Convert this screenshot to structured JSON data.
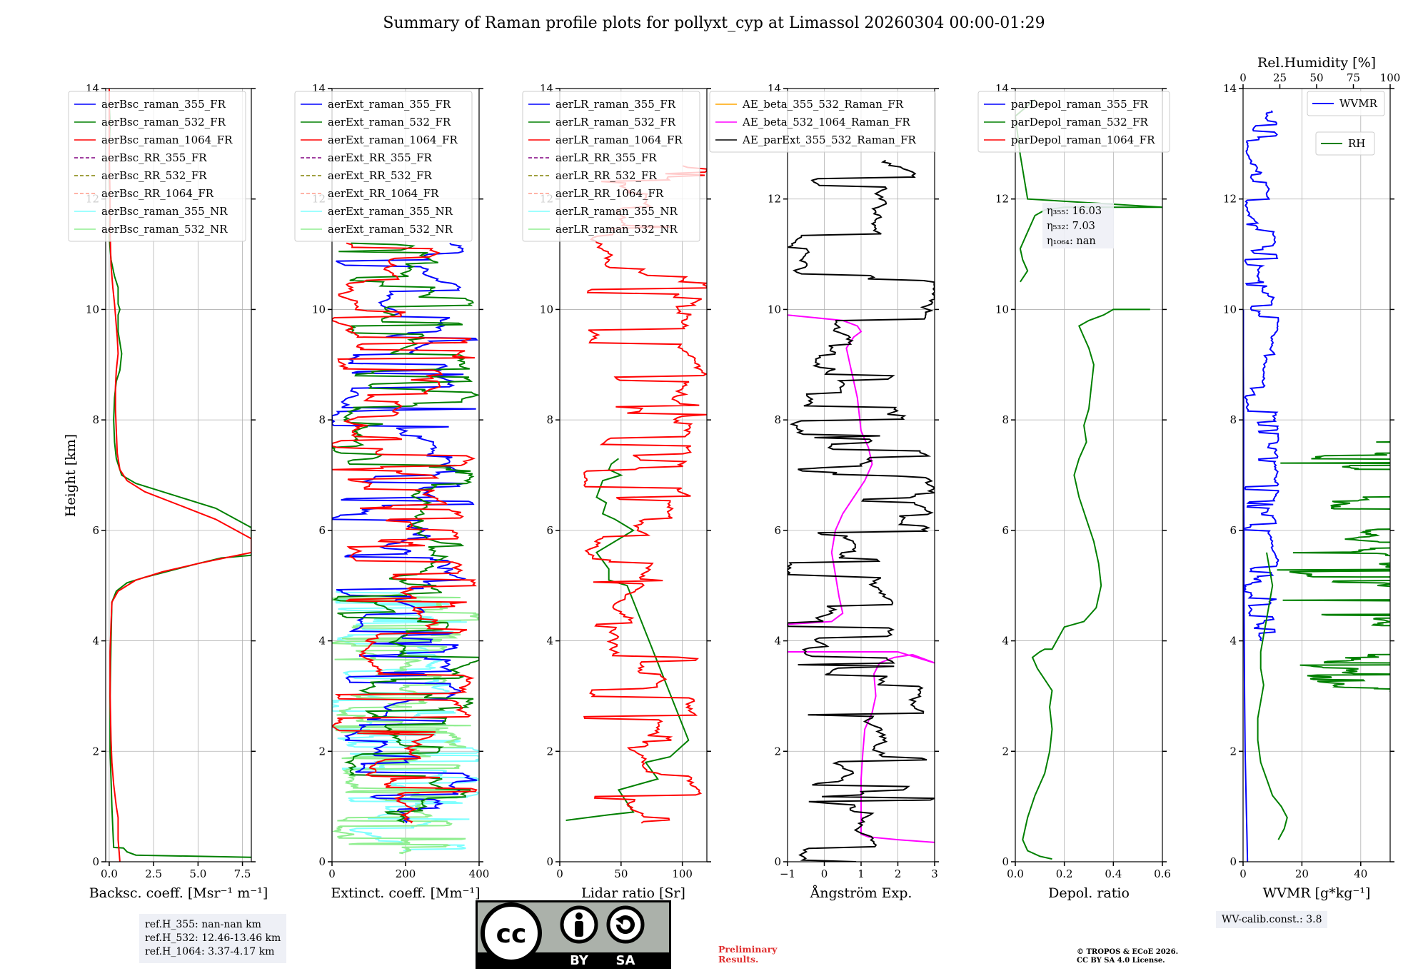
{
  "title": "Summary of Raman profile plots for pollyxt_cyp at Limassol 20260304 00:00-01:29",
  "ylabel": "Height [km]",
  "ref_heights": [
    "ref.H_355: nan-nan km",
    "ref.H_532: 12.46-13.46 km",
    "ref.H_1064: 3.37-4.17 km"
  ],
  "wv_calib": "WV-calib.const.: 3.8",
  "preliminary": [
    "Preliminary",
    "Results."
  ],
  "copyright": [
    "© TROPOS & ECoE 2026.",
    "CC BY SA 4.0 License."
  ],
  "license_badge": {
    "by": "BY",
    "sa": "SA"
  },
  "chart_data": [
    {
      "type": "line",
      "id": "bsc",
      "xlabel": "Backsc. coeff. [Msr⁻¹ m⁻¹]",
      "xlim": [
        -0.2,
        8
      ],
      "xticks": [
        0,
        2.5,
        5,
        7.5
      ],
      "xticklabels": [
        "0.0",
        "2.5",
        "5.0",
        "7.5"
      ],
      "ylim": [
        0,
        14
      ],
      "yticks": [
        0,
        2,
        4,
        6,
        8,
        10,
        12,
        14
      ],
      "legend": [
        {
          "label": "aerBsc_raman_355_FR",
          "color": "#0000ff",
          "dash": false
        },
        {
          "label": "aerBsc_raman_532_FR",
          "color": "#008000",
          "dash": false
        },
        {
          "label": "aerBsc_raman_1064_FR",
          "color": "#ff0000",
          "dash": false
        },
        {
          "label": "aerBsc_RR_355_FR",
          "color": "#800080",
          "dash": true
        },
        {
          "label": "aerBsc_RR_532_FR",
          "color": "#808000",
          "dash": true
        },
        {
          "label": "aerBsc_RR_1064_FR",
          "color": "#ff9a8a",
          "dash": true
        },
        {
          "label": "aerBsc_raman_355_NR",
          "color": "#7fffff",
          "dash": false
        },
        {
          "label": "aerBsc_raman_532_NR",
          "color": "#90ee90",
          "dash": false
        }
      ],
      "series": [
        {
          "name": "aerBsc_raman_532_FR",
          "color": "#008000",
          "x": [
            8,
            1.5,
            1.0,
            0.8,
            0.25,
            0.2,
            0.15,
            0.1,
            0.05,
            0.05,
            0.1,
            0.15,
            0.4,
            1.0,
            2.0,
            3.2,
            5.0,
            6.3,
            8.0,
            8.0,
            6.0,
            3.5,
            1.5,
            0.7,
            0.4,
            0.3,
            0.25,
            0.3,
            0.4,
            0.6,
            0.7,
            0.6,
            0.5,
            0.5,
            0.5,
            0.6,
            0.5,
            0.5,
            0.3,
            0.1,
            0.0,
            0.05,
            0.0,
            0.0,
            0.05,
            0.0,
            0.0,
            0.0
          ],
          "y": [
            0.08,
            0.12,
            0.18,
            0.25,
            0.26,
            0.6,
            1.0,
            1.5,
            2.0,
            3.0,
            4.0,
            4.7,
            4.9,
            5.05,
            5.15,
            5.25,
            5.4,
            5.5,
            5.55,
            6.05,
            6.4,
            6.65,
            6.85,
            7.0,
            7.3,
            7.6,
            8.0,
            8.4,
            8.7,
            8.9,
            9.2,
            9.4,
            9.6,
            9.8,
            9.9,
            10.0,
            10.1,
            10.4,
            10.6,
            10.9,
            11.3,
            11.8,
            12.4,
            12.9,
            13.4,
            13.7,
            13.9,
            14.0
          ]
        },
        {
          "name": "aerBsc_raman_1064_FR",
          "color": "#ff0000",
          "x": [
            0.6,
            0.55,
            0.5,
            0.5,
            0.4,
            0.25,
            0.15,
            0.1,
            0.05,
            0.05,
            0.1,
            0.15,
            0.5,
            1.5,
            3.0,
            5.0,
            6.5,
            8.0,
            8.0,
            6.0,
            4.0,
            2.0,
            1.0,
            0.6,
            0.45,
            0.4,
            0.35,
            0.35,
            0.4,
            0.5,
            0.45,
            0.4,
            0.35,
            0.3,
            0.2,
            0.1,
            0.05,
            0.05,
            0.0,
            0.0,
            0.0
          ],
          "y": [
            0.0,
            0.2,
            0.4,
            0.8,
            1.0,
            1.4,
            1.8,
            2.2,
            3.0,
            3.8,
            4.3,
            4.7,
            4.9,
            5.1,
            5.25,
            5.4,
            5.5,
            5.6,
            5.85,
            6.2,
            6.45,
            6.7,
            6.9,
            7.1,
            7.4,
            7.8,
            8.2,
            8.6,
            8.9,
            9.2,
            9.5,
            9.7,
            9.9,
            10.1,
            10.4,
            10.8,
            11.4,
            12.0,
            12.8,
            13.6,
            14.0
          ]
        }
      ]
    },
    {
      "type": "line",
      "id": "ext",
      "xlabel": "Extinct. coeff. [Mm⁻¹]",
      "xlim": [
        0,
        400
      ],
      "xticks": [
        0,
        200,
        400
      ],
      "xticklabels": [
        "0",
        "200",
        "400"
      ],
      "ylim": [
        0,
        14
      ],
      "yticks": [
        0,
        2,
        4,
        6,
        8,
        10,
        12,
        14
      ],
      "legend": [
        {
          "label": "aerExt_raman_355_FR",
          "color": "#0000ff",
          "dash": false
        },
        {
          "label": "aerExt_raman_532_FR",
          "color": "#008000",
          "dash": false
        },
        {
          "label": "aerExt_raman_1064_FR",
          "color": "#ff0000",
          "dash": false
        },
        {
          "label": "aerExt_RR_355_FR",
          "color": "#800080",
          "dash": true
        },
        {
          "label": "aerExt_RR_532_FR",
          "color": "#808000",
          "dash": true
        },
        {
          "label": "aerExt_RR_1064_FR",
          "color": "#ff9a8a",
          "dash": true
        },
        {
          "label": "aerExt_raman_355_NR",
          "color": "#7fffff",
          "dash": false
        },
        {
          "label": "aerExt_raman_532_NR",
          "color": "#90ee90",
          "dash": false
        }
      ],
      "series": [
        {
          "name": "aerExt_raman_355_NR",
          "color": "#7fffff",
          "spiky": true,
          "ymin": 0.2,
          "ymax": 4.9,
          "xmin": 0,
          "xmax": 400
        },
        {
          "name": "aerExt_raman_532_NR",
          "color": "#90ee90",
          "spiky": true,
          "ymin": 0.15,
          "ymax": 4.85,
          "xmin": 0,
          "xmax": 400
        },
        {
          "name": "aerExt_raman_355_FR",
          "color": "#0000ff",
          "spiky": true,
          "ymin": 0.7,
          "ymax": 11.2,
          "xmin": 0,
          "xmax": 400
        },
        {
          "name": "aerExt_raman_532_FR",
          "color": "#008000",
          "spiky": true,
          "ymin": 0.7,
          "ymax": 11.2,
          "xmin": 0,
          "xmax": 400
        },
        {
          "name": "aerExt_raman_1064_FR",
          "color": "#ff0000",
          "spiky": true,
          "ymin": 0.7,
          "ymax": 11.2,
          "xmin": 0,
          "xmax": 400
        }
      ]
    },
    {
      "type": "line",
      "id": "lr",
      "xlabel": "Lidar ratio [Sr]",
      "xlim": [
        0,
        120
      ],
      "xticks": [
        0,
        50,
        100
      ],
      "xticklabels": [
        "0",
        "50",
        "100"
      ],
      "ylim": [
        0,
        14
      ],
      "yticks": [
        0,
        2,
        4,
        6,
        8,
        10,
        12,
        14
      ],
      "legend": [
        {
          "label": "aerLR_raman_355_FR",
          "color": "#0000ff",
          "dash": false
        },
        {
          "label": "aerLR_raman_532_FR",
          "color": "#008000",
          "dash": false
        },
        {
          "label": "aerLR_raman_1064_FR",
          "color": "#ff0000",
          "dash": false
        },
        {
          "label": "aerLR_RR_355_FR",
          "color": "#800080",
          "dash": true
        },
        {
          "label": "aerLR_RR_532_FR",
          "color": "#808000",
          "dash": true
        },
        {
          "label": "aerLR_RR_1064_FR",
          "color": "#ff9a8a",
          "dash": true
        },
        {
          "label": "aerLR_raman_355_NR",
          "color": "#7fffff",
          "dash": false
        },
        {
          "label": "aerLR_raman_532_NR",
          "color": "#90ee90",
          "dash": false
        }
      ],
      "series": [
        {
          "name": "aerLR_raman_532_FR",
          "color": "#008000",
          "x": [
            5,
            40,
            60,
            48,
            80,
            70,
            90,
            100,
            105,
            55,
            40,
            40,
            30,
            60,
            45,
            35,
            38,
            30,
            35,
            50,
            40,
            42,
            48
          ],
          "y": [
            0.75,
            0.85,
            0.9,
            1.3,
            1.5,
            1.8,
            1.9,
            2.1,
            2.2,
            5.0,
            5.1,
            5.3,
            5.6,
            6.0,
            6.2,
            6.3,
            6.5,
            6.6,
            6.9,
            7.0,
            7.1,
            7.2,
            7.3
          ]
        },
        {
          "name": "aerLR_raman_1064_FR",
          "color": "#ff0000",
          "spiky": true,
          "ymin": 0.7,
          "ymax": 12.6,
          "xmin": 20,
          "xmax": 120
        }
      ]
    },
    {
      "type": "line",
      "id": "ae",
      "xlabel": "Ångström Exp.",
      "xlim": [
        -1,
        3
      ],
      "xticks": [
        -1,
        0,
        1,
        2,
        3
      ],
      "xticklabels": [
        "−1",
        "0",
        "1",
        "2",
        "3"
      ],
      "ylim": [
        0,
        14
      ],
      "yticks": [
        0,
        2,
        4,
        6,
        8,
        10,
        12,
        14
      ],
      "legend": [
        {
          "label": "AE_beta_355_532_Raman_FR",
          "color": "#ffa500",
          "dash": false
        },
        {
          "label": "AE_beta_532_1064_Raman_FR",
          "color": "#ff00ff",
          "dash": false
        },
        {
          "label": "AE_parExt_355_532_Raman_FR",
          "color": "#000000",
          "dash": false
        }
      ],
      "series": [
        {
          "name": "AE_beta_532_1064_Raman_FR",
          "color": "#ff00ff",
          "x": [
            3,
            2.0,
            1.2,
            1.0,
            1.0,
            1.05,
            1.1,
            1.3,
            1.4,
            1.35,
            1.5,
            1.9,
            2.4,
            3.0,
            2.0,
            1.0,
            0.3,
            -1
          ],
          "y": [
            0.35,
            0.4,
            0.45,
            0.5,
            1.5,
            2.0,
            2.4,
            2.7,
            3.0,
            3.4,
            3.6,
            3.7,
            3.75,
            3.6,
            3.8,
            3.8,
            3.8,
            3.8
          ]
        },
        {
          "name": "AE_beta_532_1064_Raman_FR_upper",
          "color": "#ff00ff",
          "x": [
            -1,
            0.2,
            0.5,
            0.4,
            0.3,
            0.2,
            0.3,
            0.5,
            0.8,
            1.1,
            1.3,
            1.2,
            1.0,
            0.95,
            0.9,
            0.8,
            0.7,
            0.6,
            0.8,
            1.0,
            0.9,
            0.5,
            -1
          ],
          "y": [
            4.3,
            4.35,
            4.5,
            4.8,
            5.2,
            5.6,
            6.0,
            6.3,
            6.6,
            6.9,
            7.2,
            7.5,
            7.8,
            8.1,
            8.4,
            8.7,
            9.0,
            9.3,
            9.5,
            9.6,
            9.7,
            9.8,
            9.9
          ]
        },
        {
          "name": "AE_parExt_355_532_Raman_FR",
          "color": "#000000",
          "spiky": true,
          "ymin": 0.0,
          "ymax": 12.7,
          "xmin": -1,
          "xmax": 3
        }
      ]
    },
    {
      "type": "line",
      "id": "depol",
      "xlabel": "Depol. ratio",
      "xlim": [
        0,
        0.6
      ],
      "xticks": [
        0,
        0.2,
        0.4,
        0.6
      ],
      "xticklabels": [
        "0.0",
        "0.2",
        "0.4",
        "0.6"
      ],
      "ylim": [
        0,
        14
      ],
      "yticks": [
        0,
        2,
        4,
        6,
        8,
        10,
        12,
        14
      ],
      "legend": [
        {
          "label": "parDepol_raman_355_FR",
          "color": "#0000ff",
          "dash": false
        },
        {
          "label": "parDepol_raman_532_FR",
          "color": "#008000",
          "dash": false
        },
        {
          "label": "parDepol_raman_1064_FR",
          "color": "#ff0000",
          "dash": false
        }
      ],
      "annotations": [
        "η₃₅₅: 16.03",
        "η₅₃₂: 7.03",
        "η₁₀₆₄: nan"
      ],
      "series": [
        {
          "name": "parDepol_raman_532_FR",
          "color": "#008000",
          "x": [
            0.15,
            0.1,
            0.05,
            0.03,
            0.05,
            0.08,
            0.12,
            0.14,
            0.15,
            0.14,
            0.15,
            0.12,
            0.09,
            0.08,
            0.07,
            0.1,
            0.12,
            0.15,
            0.2,
            0.28,
            0.33,
            0.35,
            0.34,
            0.32,
            0.29,
            0.26,
            0.24,
            0.26,
            0.29,
            0.28,
            0.3,
            0.31,
            0.32,
            0.3,
            0.28,
            0.26,
            0.3,
            0.36,
            0.4,
            0.55
          ],
          "y": [
            0.05,
            0.1,
            0.2,
            0.4,
            0.8,
            1.2,
            1.6,
            2.0,
            2.4,
            2.8,
            3.1,
            3.3,
            3.5,
            3.6,
            3.7,
            3.8,
            3.85,
            3.85,
            4.25,
            4.35,
            4.6,
            5.0,
            5.4,
            5.8,
            6.2,
            6.6,
            7.0,
            7.3,
            7.6,
            7.9,
            8.2,
            8.6,
            9.0,
            9.3,
            9.5,
            9.7,
            9.8,
            9.9,
            10.0,
            10.0
          ]
        },
        {
          "name": "parDepol_raman_532_FR_upper",
          "color": "#008000",
          "x": [
            0.02,
            0.05,
            0.03,
            0.02,
            0.04,
            0.06,
            0.08,
            0.12,
            0.2,
            0.6,
            0.05,
            0.02,
            0.0,
            0.08
          ],
          "y": [
            10.5,
            10.7,
            10.9,
            11.1,
            11.3,
            11.5,
            11.7,
            11.8,
            11.85,
            11.85,
            12.0,
            12.8,
            13.5,
            13.8
          ]
        }
      ]
    },
    {
      "type": "line",
      "id": "wv",
      "xlabel": "WVMR [g*kg⁻¹]",
      "xlim": [
        0,
        50
      ],
      "xticks": [
        0,
        20,
        40
      ],
      "xticklabels": [
        "0",
        "20",
        "40"
      ],
      "x2label": "Rel.Humidity [%]",
      "x2lim": [
        0,
        100
      ],
      "x2ticks": [
        0,
        25,
        50,
        75,
        100
      ],
      "ylim": [
        0,
        14
      ],
      "yticks": [
        0,
        2,
        4,
        6,
        8,
        10,
        12,
        14
      ],
      "legend": [
        {
          "label": "WVMR",
          "color": "#0000ff",
          "dash": false
        },
        {
          "label": "RH",
          "color": "#008000",
          "dash": false
        }
      ],
      "series": [
        {
          "name": "WVMR",
          "color": "#0000ff",
          "x": [
            1.5,
            1.3,
            1.1,
            0.9,
            0.7,
            0.5,
            0.4,
            0.3,
            0.3,
            0.2,
            0.2,
            0.1,
            0.1
          ],
          "y": [
            0.0,
            0.5,
            1.0,
            1.5,
            2.0,
            3.0,
            4.0,
            5.0,
            6.0,
            7.0,
            8.0,
            9.0,
            10.0
          ]
        },
        {
          "name": "WVMR_spikes",
          "color": "#0000ff",
          "spiky": true,
          "ymin": 4.0,
          "ymax": 13.6,
          "xmin": 0,
          "xmax": 12
        },
        {
          "name": "RH",
          "color": "#008000",
          "x": [
            12,
            14,
            15,
            13,
            10,
            8,
            6,
            5,
            5,
            6,
            7,
            6,
            6,
            7,
            8,
            9,
            10,
            9,
            8
          ],
          "y": [
            0.4,
            0.6,
            0.8,
            1.0,
            1.2,
            1.5,
            1.8,
            2.2,
            2.6,
            2.9,
            3.2,
            3.5,
            3.8,
            4.1,
            4.4,
            4.7,
            5.0,
            5.3,
            5.6
          ]
        },
        {
          "name": "RH_spikes",
          "color": "#008000",
          "spiky": true,
          "ymin": 3.0,
          "ymax": 7.7,
          "xmin": 10,
          "xmax": 100
        }
      ]
    }
  ]
}
